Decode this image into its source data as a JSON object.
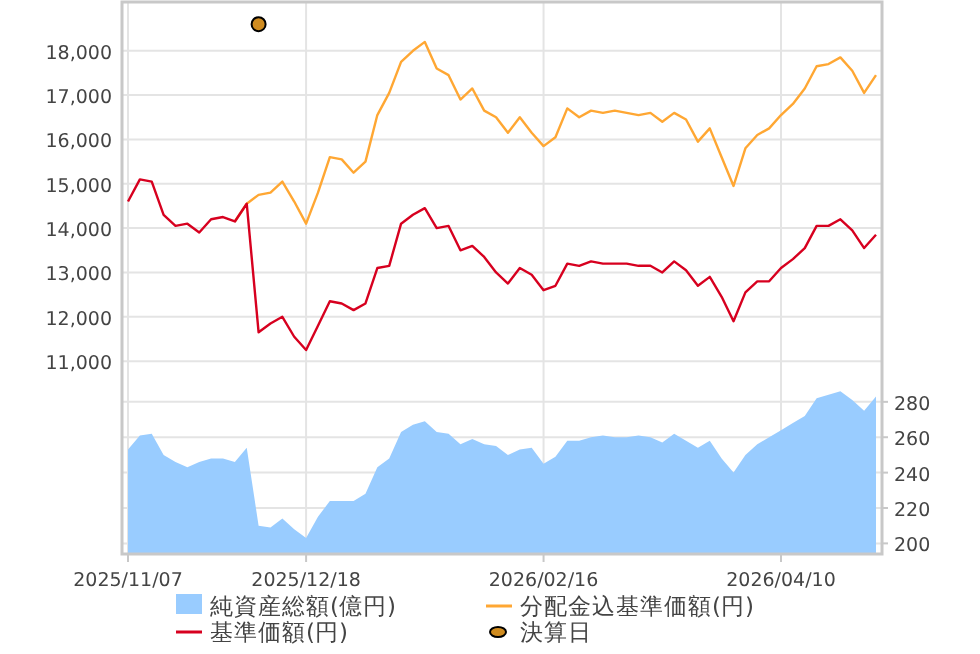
{
  "chart_data": {
    "type": "line",
    "categories": [
      "2025/11/07",
      null,
      null,
      null,
      null,
      null,
      null,
      null,
      null,
      null,
      null,
      null,
      null,
      null,
      null,
      "2025/12/18",
      null,
      null,
      null,
      null,
      null,
      null,
      null,
      null,
      null,
      null,
      null,
      null,
      null,
      null,
      null,
      null,
      null,
      null,
      null,
      "2026/02/16",
      null,
      null,
      null,
      null,
      null,
      null,
      null,
      null,
      null,
      null,
      null,
      null,
      null,
      null,
      null,
      null,
      null,
      null,
      null,
      "2026/04/10",
      null,
      null,
      null,
      null,
      null,
      null,
      null,
      null
    ],
    "ylim": [
      6650,
      19100
    ],
    "yticks": [
      {
        "value": 11000,
        "label": "11,000"
      },
      {
        "value": 12000,
        "label": "12,000"
      },
      {
        "value": 13000,
        "label": "13,000"
      },
      {
        "value": 14000,
        "label": "14,000"
      },
      {
        "value": 15000,
        "label": "15,000"
      },
      {
        "value": 16000,
        "label": "16,000"
      },
      {
        "value": 17000,
        "label": "17,000"
      },
      {
        "value": 18000,
        "label": "18,000"
      }
    ],
    "y2lim": [
      194,
      506
    ],
    "y2ticks": [
      200,
      220,
      240,
      260,
      280
    ],
    "grid": true,
    "legend": "bottom",
    "series": [
      {
        "name": "純資産総額(億円)",
        "type": "area",
        "axis": "y2",
        "color": "#99ccff",
        "values": [
          253,
          261,
          262,
          250,
          246,
          243,
          246,
          248,
          248,
          246,
          254,
          210,
          209,
          214,
          208,
          203,
          215,
          224,
          224,
          224,
          228,
          243,
          248,
          263,
          267,
          269,
          263,
          262,
          256,
          259,
          256,
          255,
          250,
          253,
          254,
          245,
          249,
          258,
          258,
          260,
          261,
          260,
          260,
          261,
          260,
          257,
          262,
          258,
          254,
          258,
          248,
          240,
          250,
          256,
          260,
          264,
          268,
          272,
          282,
          284,
          286,
          281,
          275,
          283
        ]
      },
      {
        "name": "分配金込基準価額(円)",
        "color": "#ffa733",
        "values": [
          null,
          null,
          null,
          null,
          null,
          null,
          null,
          null,
          null,
          14150,
          14550,
          14750,
          14800,
          15050,
          14600,
          14100,
          14800,
          15600,
          15550,
          15250,
          15500,
          16550,
          17050,
          17750,
          18000,
          18200,
          17600,
          17450,
          16900,
          17150,
          16650,
          16500,
          16150,
          16500,
          16150,
          15850,
          16050,
          16700,
          16500,
          16650,
          16600,
          16650,
          16600,
          16550,
          16600,
          16400,
          16600,
          16450,
          15950,
          16250,
          15600,
          14950,
          15800,
          16100,
          16250,
          16550,
          16800,
          17150,
          17650,
          17700,
          17850,
          17550,
          17050,
          17450
        ]
      },
      {
        "name": "基準価額(円)",
        "color": "#d7001f",
        "values": [
          14600,
          15100,
          15050,
          14300,
          14050,
          14100,
          13900,
          14200,
          14250,
          14150,
          14550,
          11650,
          11850,
          12000,
          11550,
          11250,
          11800,
          12350,
          12300,
          12150,
          12300,
          13100,
          13150,
          14100,
          14300,
          14450,
          14000,
          14050,
          13500,
          13600,
          13350,
          13000,
          12750,
          13100,
          12950,
          12600,
          12700,
          13200,
          13150,
          13250,
          13200,
          13200,
          13200,
          13150,
          13150,
          13000,
          13250,
          13050,
          12700,
          12900,
          12450,
          11900,
          12550,
          12800,
          12800,
          13100,
          13300,
          13550,
          14050,
          14050,
          14200,
          13950,
          13550,
          13850
        ]
      },
      {
        "name": "決算日",
        "type": "scatter",
        "marker": "circle",
        "color": "#d08c20",
        "values": [
          null,
          null,
          null,
          null,
          null,
          null,
          null,
          null,
          null,
          null,
          null,
          18600,
          null,
          null,
          null,
          null,
          null,
          null,
          null,
          null,
          null,
          null,
          null,
          null,
          null,
          null,
          null,
          null,
          null,
          null,
          null,
          null,
          null,
          null,
          null,
          null,
          null,
          null,
          null,
          null,
          null,
          null,
          null,
          null,
          null,
          null,
          null,
          null,
          null,
          null,
          null,
          null,
          null,
          null,
          null,
          null,
          null,
          null,
          null,
          null,
          null,
          null,
          null,
          null
        ]
      }
    ]
  }
}
